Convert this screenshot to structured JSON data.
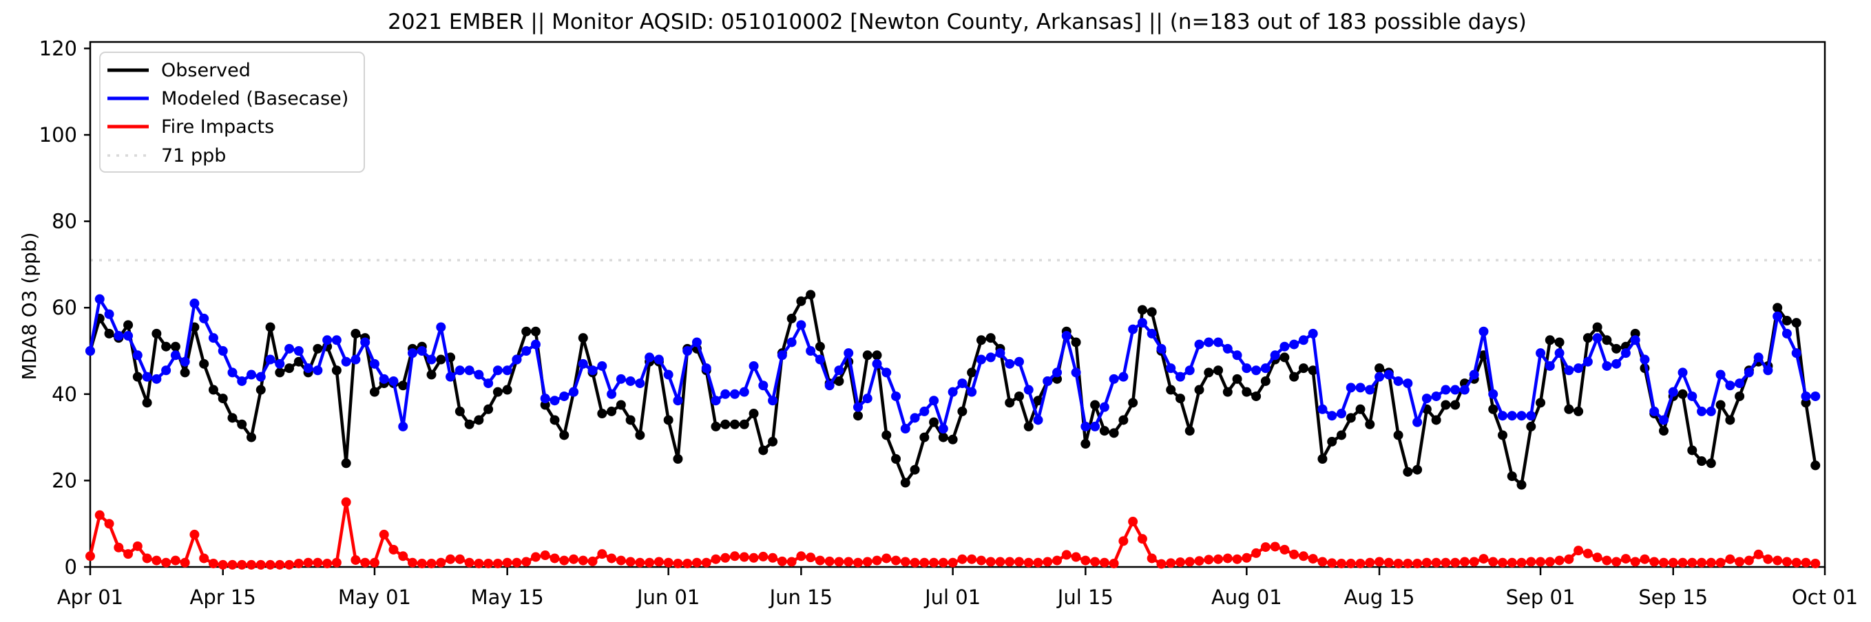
{
  "header": {
    "title": "2021 EMBER || Monitor AQSID: 051010002 [Newton County, Arkansas] || (n=183 out of 183 possible days)"
  },
  "legend": {
    "items": [
      {
        "label": "Observed",
        "color": "#000000",
        "style": "solid"
      },
      {
        "label": "Modeled (Basecase)",
        "color": "#0000ff",
        "style": "solid"
      },
      {
        "label": "Fire Impacts",
        "color": "#ff0000",
        "style": "solid"
      },
      {
        "label": "71 ppb",
        "color": "#d9d9d9",
        "style": "dotted"
      }
    ]
  },
  "chart_data": {
    "type": "line",
    "title": "2021 EMBER || Monitor AQSID: 051010002 [Newton County, Arkansas] || (n=183 out of 183 possible days)",
    "xlabel": "",
    "ylabel": "MDA8 O3 (ppb)",
    "ylim": [
      0,
      121.5
    ],
    "grid": false,
    "legend_position": "upper left",
    "x_start_date": "Apr 01 2021",
    "x_end_date": "Sep 30 2021",
    "n_days": 183,
    "y_ticks": [
      0,
      20,
      40,
      60,
      80,
      100,
      120
    ],
    "x_ticks": [
      {
        "label": "Apr 01",
        "day": 0
      },
      {
        "label": "Apr 15",
        "day": 14
      },
      {
        "label": "May 01",
        "day": 30
      },
      {
        "label": "May 15",
        "day": 44
      },
      {
        "label": "Jun 01",
        "day": 61
      },
      {
        "label": "Jun 15",
        "day": 75
      },
      {
        "label": "Jul 01",
        "day": 91
      },
      {
        "label": "Jul 15",
        "day": 105
      },
      {
        "label": "Aug 01",
        "day": 122
      },
      {
        "label": "Aug 15",
        "day": 136
      },
      {
        "label": "Sep 01",
        "day": 153
      },
      {
        "label": "Sep 15",
        "day": 167
      },
      {
        "label": "Oct 01",
        "day": 183
      }
    ],
    "threshold": {
      "label": "71 ppb",
      "value": 71,
      "color": "#d9d9d9"
    },
    "series": [
      {
        "name": "Observed",
        "color": "#000000",
        "values": [
          50,
          57.5,
          54,
          53,
          56,
          44,
          38,
          54,
          51,
          51,
          45,
          55.5,
          47,
          41,
          39,
          34.5,
          33,
          30,
          41,
          55.5,
          45,
          46,
          47.5,
          45,
          50.5,
          51,
          45.5,
          24,
          54,
          53,
          40.5,
          42.5,
          42.5,
          42,
          50.5,
          51,
          44.5,
          48,
          48.5,
          36,
          33,
          34,
          36.5,
          40.5,
          41,
          48,
          54.5,
          54.5,
          37.5,
          34,
          30.5,
          40.5,
          53,
          45,
          35.5,
          36,
          37.5,
          34,
          30.5,
          47.5,
          47.5,
          34,
          25,
          50.5,
          50.5,
          45.5,
          32.5,
          33,
          33,
          33,
          35.5,
          27,
          29,
          49.5,
          57.5,
          61.5,
          63,
          51,
          42.5,
          43,
          47.5,
          35,
          49,
          49,
          30.5,
          25,
          19.5,
          22.5,
          30,
          33.5,
          30,
          29.5,
          36,
          45,
          52.5,
          53,
          50.5,
          38,
          39.5,
          32.5,
          38.5,
          43,
          43.5,
          54.5,
          52,
          28.5,
          37.5,
          31.5,
          31,
          34,
          38,
          59.5,
          59,
          50,
          41,
          39,
          31.5,
          41,
          45,
          45.5,
          40.5,
          43.5,
          40.5,
          39.5,
          43,
          48,
          48.5,
          44,
          46,
          45.5,
          25,
          29,
          30.5,
          34.5,
          36.5,
          33,
          46,
          45,
          30.5,
          22,
          22.5,
          36.5,
          34,
          37.5,
          37.5,
          42.5,
          43.5,
          49,
          36.5,
          30.5,
          21,
          19,
          32.5,
          38,
          52.5,
          52,
          36.5,
          36,
          53,
          55.5,
          52.5,
          50.5,
          51,
          54,
          46,
          35.5,
          31.5,
          39.5,
          40,
          27,
          24.5,
          24,
          37.5,
          34,
          39.5,
          45.5,
          47.5,
          46.5,
          60,
          57,
          56.5,
          38,
          23.5
        ]
      },
      {
        "name": "Modeled (Basecase)",
        "color": "#0000ff",
        "values": [
          50,
          62,
          58.5,
          53.5,
          53.5,
          49,
          44,
          43.5,
          45.5,
          49,
          47.5,
          61,
          57.5,
          53,
          50,
          45,
          43,
          44.5,
          44,
          48,
          47,
          50.5,
          50,
          46,
          45.5,
          52.5,
          52.5,
          47.5,
          48,
          52,
          47,
          43.5,
          43,
          32.5,
          49.5,
          50,
          48,
          55.5,
          44,
          45.5,
          45.5,
          44.5,
          42.5,
          45.5,
          45.5,
          48,
          50,
          51.5,
          39,
          38.5,
          39.5,
          40.5,
          47,
          45.5,
          46.5,
          40,
          43.5,
          43,
          42.5,
          48.5,
          48,
          44.5,
          38.5,
          50,
          52,
          46,
          38.5,
          40,
          40,
          40.5,
          46.5,
          42,
          38.5,
          49,
          52,
          56,
          50,
          48,
          42,
          45.5,
          49.5,
          37,
          39,
          47,
          45,
          39.5,
          32,
          34.5,
          36,
          38.5,
          32,
          40.5,
          42.5,
          40.5,
          48,
          48.5,
          49.5,
          47,
          47.5,
          41,
          34,
          43,
          45,
          53.5,
          45,
          32.5,
          32.5,
          37,
          43.5,
          44,
          55,
          56.5,
          54,
          50.5,
          46,
          44,
          45.5,
          51.5,
          52,
          52,
          50.5,
          49,
          46,
          45.5,
          46,
          49,
          51,
          51.5,
          52.5,
          54,
          36.5,
          35,
          35.5,
          41.5,
          41.5,
          41,
          44,
          44.5,
          43,
          42.5,
          33.5,
          39,
          39.5,
          41,
          41,
          41,
          44.5,
          54.5,
          40,
          35,
          35,
          35,
          35,
          49.5,
          46.5,
          49.5,
          45.5,
          46,
          47.5,
          53,
          46.5,
          47,
          49.5,
          52.5,
          48,
          36,
          34,
          40.5,
          45,
          39.5,
          36,
          36,
          44.5,
          42,
          42.5,
          45,
          48.5,
          45.5,
          58,
          54,
          49.5,
          39.5,
          39.5
        ]
      },
      {
        "name": "Fire Impacts",
        "color": "#ff0000",
        "values": [
          2.5,
          12,
          10,
          4.5,
          3,
          4.8,
          2,
          1.5,
          1,
          1.5,
          1,
          7.5,
          2,
          0.8,
          0.5,
          0.5,
          0.5,
          0.5,
          0.5,
          0.5,
          0.5,
          0.5,
          0.8,
          1,
          1,
          0.8,
          1,
          15,
          1.6,
          1,
          1,
          7.5,
          4,
          2.5,
          1,
          0.8,
          0.8,
          1,
          1.8,
          1.8,
          1,
          0.8,
          0.8,
          0.8,
          1,
          1,
          1.2,
          2.3,
          2.7,
          2,
          1.5,
          1.8,
          1.5,
          1.3,
          3,
          2,
          1.5,
          1.2,
          1,
          1,
          1.2,
          1,
          0.8,
          0.8,
          1,
          1,
          1.8,
          2.1,
          2.5,
          2.3,
          2.1,
          2.4,
          2.1,
          1.3,
          1.2,
          2.5,
          2.2,
          1.5,
          1.3,
          1.2,
          1.2,
          1,
          1.2,
          1.5,
          2,
          1.5,
          1.2,
          1,
          1,
          1,
          1,
          1,
          1.8,
          1.8,
          1.5,
          1.2,
          1.2,
          1.2,
          1.2,
          1,
          1,
          1.2,
          1.5,
          2.8,
          2.3,
          1.5,
          1.2,
          1,
          0.8,
          6,
          10.5,
          6.5,
          2,
          0.7,
          0.9,
          1.1,
          1.2,
          1.4,
          1.7,
          1.8,
          2,
          1.8,
          2.1,
          3.2,
          4.6,
          4.7,
          4,
          2.9,
          2.5,
          1.9,
          1.2,
          0.9,
          0.8,
          0.8,
          0.8,
          1,
          1.2,
          1,
          0.8,
          0.8,
          0.8,
          1,
          1,
          1,
          1,
          1.2,
          1.2,
          1.9,
          1.2,
          1,
          1,
          1,
          1.2,
          1.2,
          1.2,
          1.5,
          1.8,
          3.8,
          3.1,
          2.2,
          1.5,
          1.2,
          1.9,
          1.2,
          1.8,
          1.2,
          1,
          1,
          1,
          1,
          1,
          1,
          1,
          1.8,
          1.2,
          1.5,
          2.9,
          1.8,
          1.5,
          1.2,
          1,
          1,
          0.8
        ]
      }
    ]
  }
}
